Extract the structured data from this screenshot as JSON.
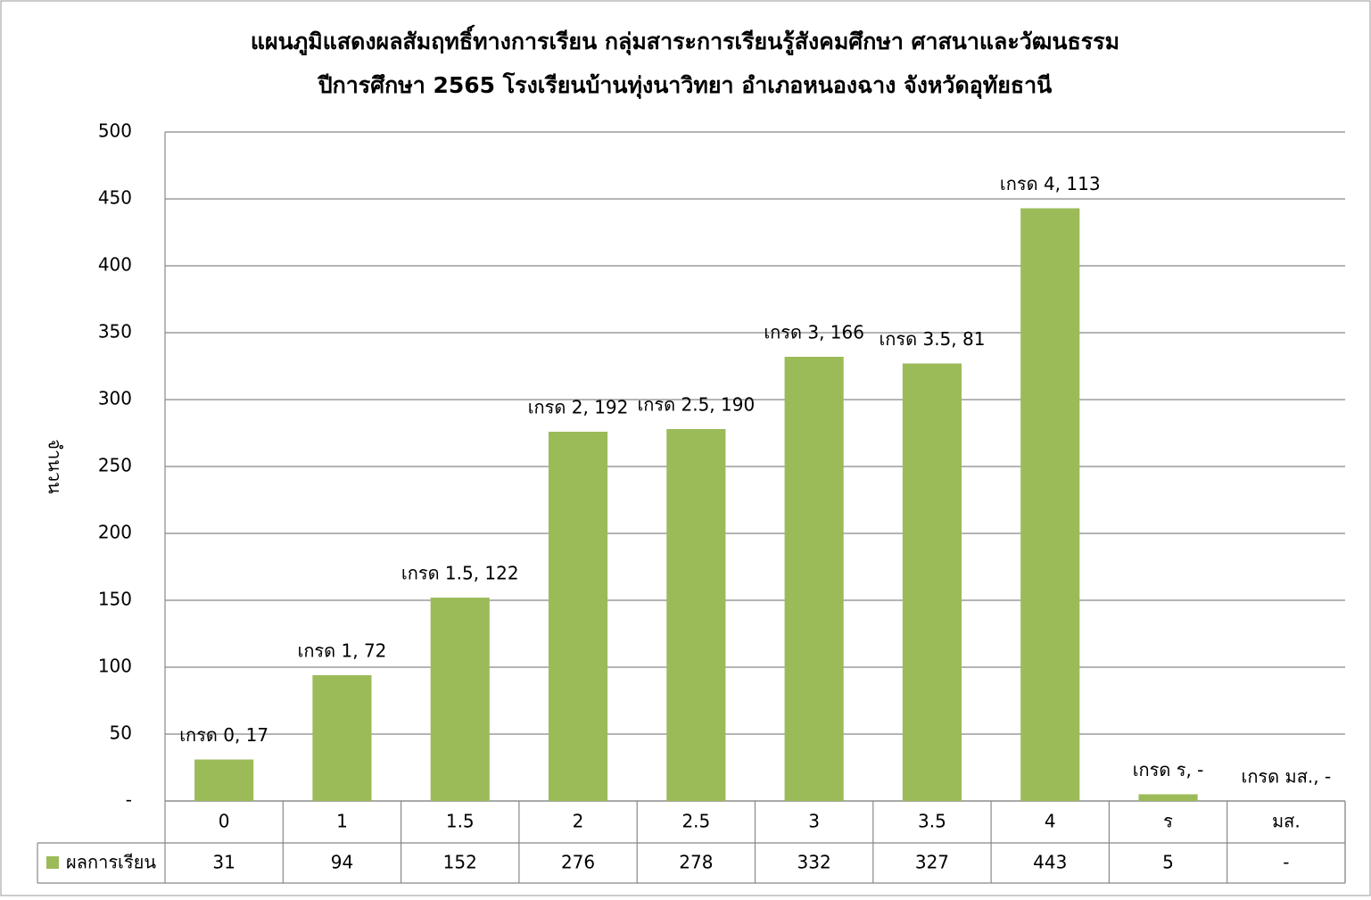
{
  "chart_data": {
    "type": "bar",
    "title": "แผนภูมิแสดงผลสัมฤทธิ์ทางการเรียน กลุ่มสาระการเรียนรู้สังคมศึกษา ศาสนาและวัฒนธรรม",
    "subtitle": "ปีการศึกษา 2565  โรงเรียนบ้านทุ่งนาวิทยา อำเภอหนองฉาง จังหวัดอุทัยธานี",
    "y_label": "จำนวน",
    "categories": [
      "0",
      "1",
      "1.5",
      "2",
      "2.5",
      "3",
      "3.5",
      "4",
      "ร",
      "มส."
    ],
    "series": [
      {
        "name": "ผลการเรียน",
        "color": "#9bbb59",
        "values": [
          31,
          94,
          152,
          276,
          278,
          332,
          327,
          443,
          5,
          null
        ],
        "value_labels": [
          "31",
          "94",
          "152",
          "276",
          "278",
          "332",
          "327",
          "443",
          "5",
          "-"
        ]
      }
    ],
    "annotations": [
      "เกรด 0,  17",
      "เกรด 1,  72",
      "เกรด 1.5,  122",
      "เกรด 2,  192",
      "เกรด 2.5,  190",
      "เกรด 3,  166",
      "เกรด 3.5,  81",
      "เกรด 4,  113",
      "เกรด ร,  -",
      "เกรด มส.,  -"
    ],
    "ylim": [
      0,
      500
    ],
    "yticks": [
      {
        "value": 0,
        "label": "-"
      },
      50,
      100,
      150,
      200,
      250,
      300,
      350,
      400,
      450,
      500
    ],
    "grid": true
  }
}
